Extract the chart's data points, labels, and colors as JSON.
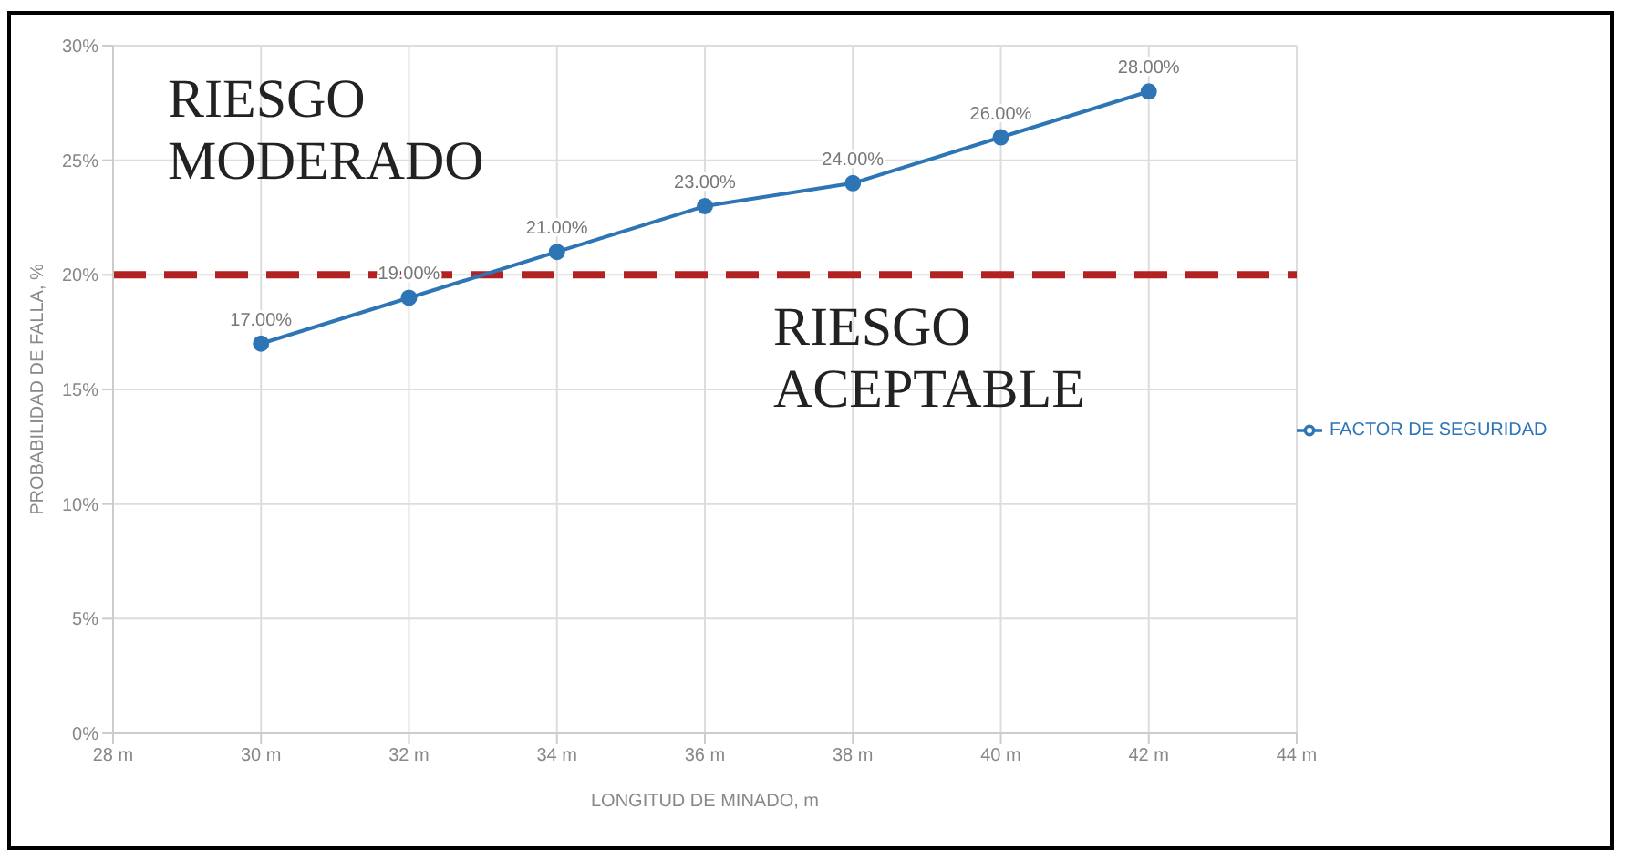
{
  "chart_data": {
    "type": "line",
    "xlabel": "LONGITUD DE MINADO, m",
    "ylabel": "PROBABILIDAD DE FALLA, %",
    "x": [
      30,
      32,
      34,
      36,
      38,
      40,
      42
    ],
    "series": [
      {
        "name": "FACTOR DE SEGURIDAD",
        "color": "#2e75b6",
        "values": [
          17,
          19,
          21,
          23,
          24,
          26,
          28
        ],
        "value_labels": [
          "17.00%",
          "19.00%",
          "21.00%",
          "23.00%",
          "24.00%",
          "26.00%",
          "28.00%"
        ]
      }
    ],
    "xlim": [
      28,
      44
    ],
    "xticks": [
      {
        "value": 28,
        "label": "28 m"
      },
      {
        "value": 30,
        "label": "30 m"
      },
      {
        "value": 32,
        "label": "32 m"
      },
      {
        "value": 34,
        "label": "34 m"
      },
      {
        "value": 36,
        "label": "36 m"
      },
      {
        "value": 38,
        "label": "38 m"
      },
      {
        "value": 40,
        "label": "40 m"
      },
      {
        "value": 42,
        "label": "42 m"
      },
      {
        "value": 44,
        "label": "44 m"
      }
    ],
    "ylim": [
      0,
      30
    ],
    "yticks": [
      {
        "value": 0,
        "label": "0%"
      },
      {
        "value": 5,
        "label": "5%"
      },
      {
        "value": 10,
        "label": "10%"
      },
      {
        "value": 15,
        "label": "15%"
      },
      {
        "value": 20,
        "label": "20%"
      },
      {
        "value": 25,
        "label": "25%"
      },
      {
        "value": 30,
        "label": "30%"
      }
    ],
    "ref_lines": [
      {
        "axis": "y",
        "value": 20,
        "color": "#b22222",
        "line_style": "dashed"
      }
    ],
    "annotations": [
      "RIESGO MODERADO",
      "RIESGO ACEPTABLE"
    ],
    "grid": true,
    "legend": "right",
    "marker": "circle",
    "line_style": "solid"
  }
}
